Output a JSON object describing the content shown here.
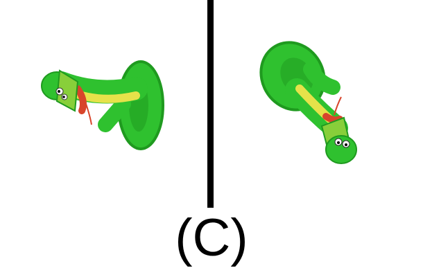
{
  "figure": {
    "caption": "(C)",
    "background_color": "#ffffff",
    "divider_color": "#000000",
    "panels": [
      {
        "name": "toy-snake-view-left"
      },
      {
        "name": "toy-snake-view-right"
      }
    ],
    "colors": {
      "snake_green": "#2fc12f",
      "snake_dark_green": "#1f9a1f",
      "belly_yellow": "#e6e24a",
      "collar_red": "#d8452b",
      "eye_white": "#ffffff",
      "pupil": "#000000"
    }
  }
}
